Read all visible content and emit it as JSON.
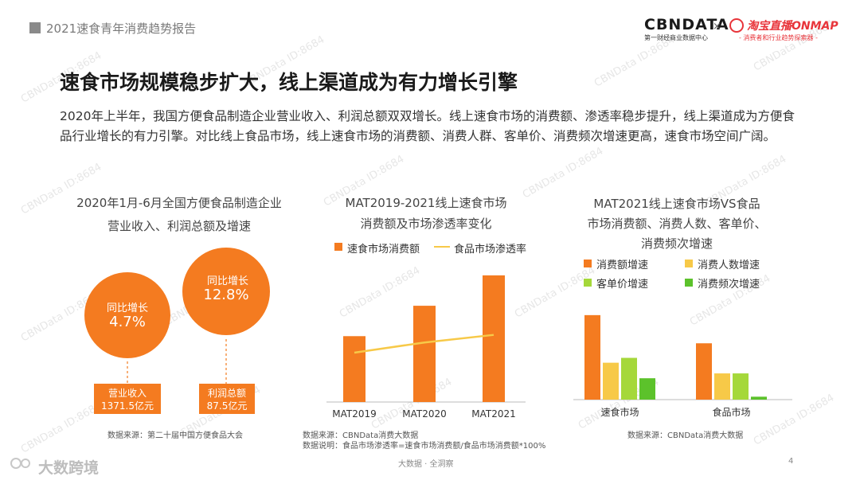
{
  "header": {
    "title": "2021速食青年消费趋势报告"
  },
  "logos": {
    "cbn": "CBNDATA",
    "cbn_sub": "第一财经商业数据中心",
    "times": "×",
    "tb": "淘宝直播ONMAP",
    "tb_sub": "- 消费者和行业趋势探索器 -"
  },
  "watermark": "CBNData ID:8684",
  "slide": {
    "title": "速食市场规模稳步扩大，线上渠道成为有力增长引擎",
    "lead": "2020年上半年，我国方便食品制造企业营业收入、利润总额双双增长。线上速食市场的消费额、渗透率稳步提升，线上渠道成为方便食品行业增长的有力引擎。对比线上食品市场，线上速食市场的消费额、消费人群、客单价、消费频次增速更高，速食市场空间广阔。"
  },
  "left_panel": {
    "title_line1": "2020年1月-6月全国方便食品制造企业",
    "title_line2": "营业收入、利润总额及增速",
    "circle1_label": "同比增长",
    "circle1_value": "4.7%",
    "circle2_label": "同比增长",
    "circle2_value": "12.8%",
    "box1_line1": "营业收入",
    "box1_line2": "1371.5亿元",
    "box2_line1": "利润总额",
    "box2_line2": "87.5亿元",
    "source": "数据来源：第二十届中国方便食品大会"
  },
  "mid_panel": {
    "source": "数据来源：CBNData消费大数据",
    "note": "数据说明：食品市场渗透率=速食市场消费额/食品市场消费额*100%"
  },
  "right_panel": {
    "source": "数据来源：CBNData消费大数据"
  },
  "chart_data": [
    {
      "type": "bar",
      "title": "MAT2019-2021线上速食市场消费额及市场渗透率变化",
      "title_line1": "MAT2019-2021线上速食市场",
      "title_line2": "消费额及市场渗透率变化",
      "categories": [
        "MAT2019",
        "MAT2020",
        "MAT2021"
      ],
      "series": [
        {
          "name": "速食市场消费额",
          "type": "bar",
          "color": "#f47b20",
          "values": [
            0.52,
            0.76,
            1.0
          ]
        },
        {
          "name": "食品市场渗透率",
          "type": "line",
          "color": "#f7c948",
          "values": [
            0.39,
            0.47,
            0.53
          ]
        }
      ],
      "ylim": [
        0,
        1.1
      ],
      "grid": false,
      "legend": "top"
    },
    {
      "type": "bar",
      "title": "MAT2021线上速食市场VS食品市场消费额、消费人数、客单价、消费频次增速",
      "title_line1": "MAT2021线上速食市场VS食品",
      "title_line2": "市场消费额、消费人数、客单价、",
      "title_line3": "消费频次增速",
      "categories": [
        "速食市场",
        "食品市场"
      ],
      "series": [
        {
          "name": "消费额增速",
          "color": "#f47b20",
          "values": [
            0.87,
            0.58
          ]
        },
        {
          "name": "消费人数增速",
          "color": "#f7c948",
          "values": [
            0.38,
            0.27
          ]
        },
        {
          "name": "客单价增速",
          "color": "#a5d83a",
          "values": [
            0.43,
            0.27
          ]
        },
        {
          "name": "消费频次增速",
          "color": "#5cc22b",
          "values": [
            0.22,
            0.03
          ]
        }
      ],
      "ylim": [
        0,
        1.0
      ],
      "grid": false,
      "legend": "top"
    }
  ],
  "footer": {
    "text": "大数据 · 全洞察",
    "page": "4",
    "brand": "大数跨境"
  }
}
